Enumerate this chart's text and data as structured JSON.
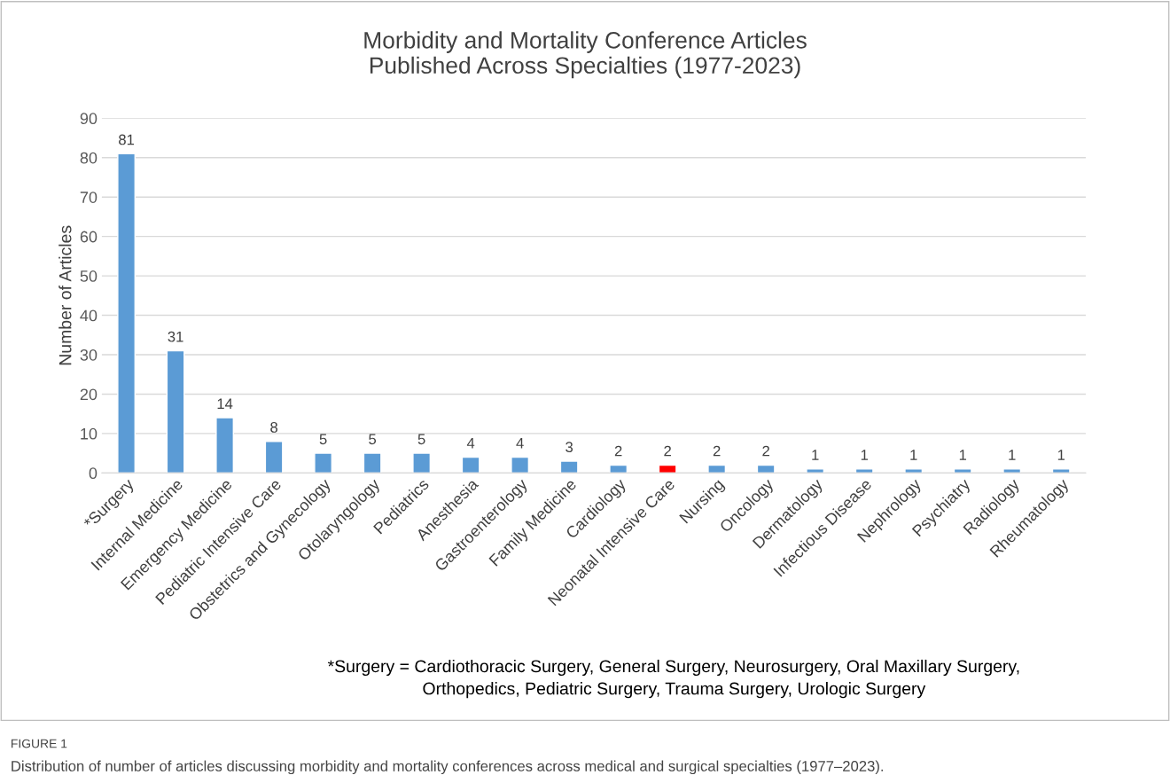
{
  "chart_data": {
    "type": "bar",
    "title": "Morbidity and Mortality Conference Articles\nPublished Across Specialties (1977-2023)",
    "ylabel": "Number of Articles",
    "categories": [
      "*Surgery",
      "Internal Medicine",
      "Emergency Medicine",
      "Pediatric Intensive Care",
      "Obstetrics and Gynecology",
      "Otolaryngology",
      "Pediatrics",
      "Anesthesia",
      "Gastroenterology",
      "Family Medicine",
      "Cardiology",
      "Neonatal Intensive Care",
      "Nursing",
      "Oncology",
      "Dermatology",
      "Infectious Disease",
      "Nephrology",
      "Psychiatry",
      "Radiology",
      "Rheumatology"
    ],
    "values": [
      81,
      31,
      14,
      8,
      5,
      5,
      5,
      4,
      4,
      3,
      2,
      2,
      2,
      2,
      1,
      1,
      1,
      1,
      1,
      1
    ],
    "colors": [
      "#5b9bd5",
      "#5b9bd5",
      "#5b9bd5",
      "#5b9bd5",
      "#5b9bd5",
      "#5b9bd5",
      "#5b9bd5",
      "#5b9bd5",
      "#5b9bd5",
      "#5b9bd5",
      "#5b9bd5",
      "#ff0000",
      "#5b9bd5",
      "#5b9bd5",
      "#5b9bd5",
      "#5b9bd5",
      "#5b9bd5",
      "#5b9bd5",
      "#5b9bd5",
      "#5b9bd5"
    ],
    "ylim": [
      0,
      90
    ],
    "yticks": [
      0,
      10,
      20,
      30,
      40,
      50,
      60,
      70,
      80,
      90
    ],
    "grid": "y",
    "data_labels": true,
    "legend": false,
    "annotations": [
      "*Surgery = Cardiothoracic Surgery, General Surgery, Neurosurgery, Oral Maxillary Surgery,\nOrthopedics, Pediatric Surgery, Trauma Surgery, Urologic Surgery",
      "FIGURE 1",
      "Distribution of number of articles discussing morbidity and mortality conferences across medical and surgical specialties (1977–2023)."
    ]
  }
}
